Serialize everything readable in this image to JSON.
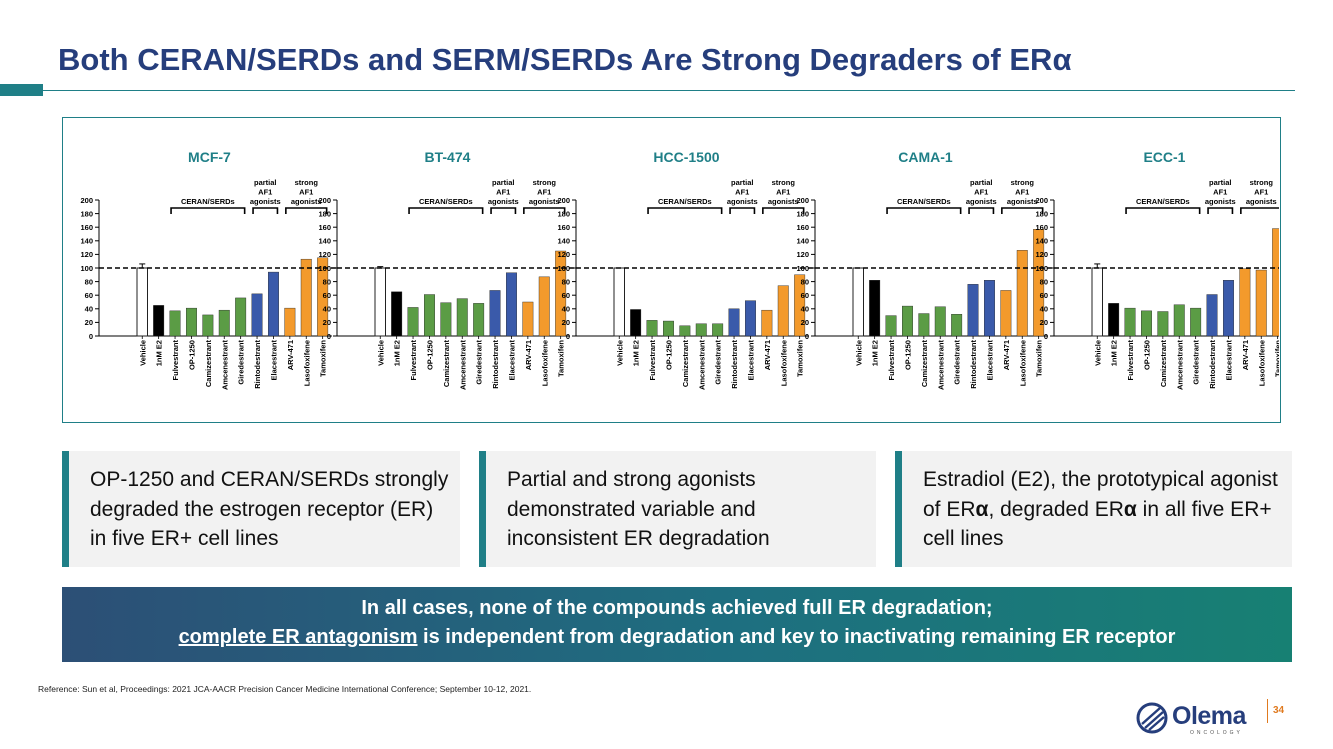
{
  "slide": {
    "title": "Both CERAN/SERDs and SERM/SERDs Are Strong Degraders of ER",
    "title_alpha": "α",
    "page_number": "34",
    "reference": "Reference: Sun et al, Proceedings: 2021 JCA-AACR Precision Cancer Medicine International Conference; September 10-12, 2021."
  },
  "logo": {
    "name": "Olema",
    "subtitle": "ONCOLOGY"
  },
  "boxes": [
    {
      "text": "OP-1250 and CERAN/SERDs strongly degraded the estrogen receptor (ER) in five ER+ cell lines"
    },
    {
      "text": "Partial and strong agonists demonstrated variable and inconsistent ER degradation"
    },
    {
      "pre": "Estradiol (E2), the prototypical agonist of ER",
      "alpha1": "α",
      "mid": ", degraded ER",
      "alpha2": "α",
      "post": " in all five ER+ cell lines"
    }
  ],
  "banner": {
    "line1": "In all cases, none of the compounds achieved full ER degradation;",
    "line2_underlined": "complete ER antagonism",
    "line2_rest": " is independent from degradation and key to inactivating remaining ER receptor"
  },
  "colors": {
    "accent": "#1f7f87",
    "title": "#263e7c",
    "vehicle": "#ffffff",
    "e2": "#000000",
    "ceran_serd": "#5b9c45",
    "partial_agonist": "#3a5aaa",
    "strong_agonist": "#f39a2c",
    "chart_title": "#1f7f87"
  },
  "chart_data": {
    "type": "bar",
    "ylim": [
      0,
      200
    ],
    "yticks": [
      0,
      20,
      40,
      60,
      80,
      100,
      120,
      140,
      160,
      180,
      200
    ],
    "reference_line": 100,
    "categories": [
      "Vehicle",
      "1nM E2",
      "Fulvestrant",
      "OP-1250",
      "Camizestrant",
      "Amcenestrant",
      "Giredestrant",
      "Rintodestrant",
      "Elacestrant",
      "ARV-471",
      "Lasofoxifene",
      "Tamoxifen"
    ],
    "category_groups": [
      "vehicle",
      "e2",
      "ceran_serd",
      "ceran_serd",
      "ceran_serd",
      "ceran_serd",
      "ceran_serd",
      "partial_agonist",
      "partial_agonist",
      "strong_agonist",
      "strong_agonist",
      "strong_agonist"
    ],
    "group_labels": [
      {
        "text": "CERAN/SERDs",
        "from": 2,
        "to": 6
      },
      {
        "text": "partial AF1 agonists",
        "from": 7,
        "to": 8
      },
      {
        "text": "strong AF1 agonists",
        "from": 9,
        "to": 11
      }
    ],
    "series": [
      {
        "name": "MCF-7",
        "values": [
          100,
          45,
          37,
          41,
          31,
          38,
          56,
          62,
          94,
          41,
          113,
          115
        ],
        "error": [
          6,
          0,
          0,
          0,
          0,
          0,
          0,
          0,
          0,
          0,
          0,
          0
        ]
      },
      {
        "name": "BT-474",
        "values": [
          100,
          65,
          42,
          61,
          49,
          55,
          48,
          67,
          93,
          50,
          87,
          125
        ],
        "error": [
          2,
          0,
          0,
          0,
          0,
          0,
          0,
          0,
          0,
          0,
          0,
          0
        ]
      },
      {
        "name": "HCC-1500",
        "values": [
          100,
          39,
          23,
          22,
          15,
          18,
          18,
          40,
          52,
          38,
          74,
          90
        ],
        "error": [
          0,
          0,
          0,
          0,
          0,
          0,
          0,
          0,
          0,
          0,
          0,
          0
        ]
      },
      {
        "name": "CAMA-1",
        "values": [
          100,
          82,
          30,
          44,
          33,
          43,
          32,
          76,
          82,
          67,
          126,
          157
        ],
        "error": [
          0,
          0,
          0,
          0,
          0,
          0,
          0,
          0,
          0,
          0,
          0,
          0
        ]
      },
      {
        "name": "ECC-1",
        "values": [
          100,
          48,
          41,
          37,
          36,
          46,
          41,
          61,
          82,
          99,
          97,
          158
        ],
        "error": [
          6,
          0,
          0,
          0,
          0,
          0,
          0,
          0,
          0,
          0,
          0,
          0
        ]
      }
    ]
  }
}
